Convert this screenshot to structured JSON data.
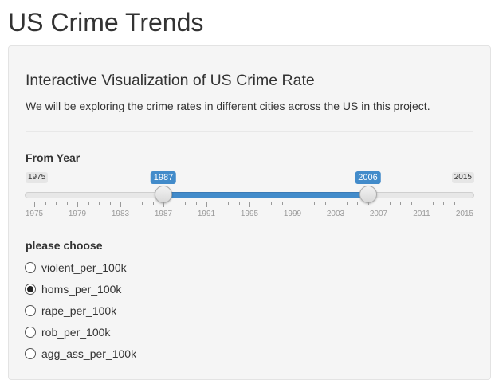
{
  "page": {
    "title": "US Crime Trends"
  },
  "panel": {
    "heading": "Interactive Visualization of US Crime Rate",
    "description": "We will be exploring the crime rates in different cities across the US in this project."
  },
  "year_slider": {
    "label": "From Year",
    "min": 1975,
    "max": 2015,
    "min_label": "1975",
    "max_label": "2015",
    "from": 1987,
    "to": 2006,
    "from_label": "1987",
    "to_label": "2006",
    "accent_color": "#428bca",
    "tick_labels": [
      "1975",
      "1979",
      "1983",
      "1987",
      "1991",
      "1995",
      "1999",
      "2003",
      "2007",
      "2011",
      "2015"
    ]
  },
  "crime_choice": {
    "label": "please choose",
    "options": [
      {
        "label": "violent_per_100k",
        "checked": false
      },
      {
        "label": "homs_per_100k",
        "checked": true
      },
      {
        "label": "rape_per_100k",
        "checked": false
      },
      {
        "label": "rob_per_100k",
        "checked": false
      },
      {
        "label": "agg_ass_per_100k",
        "checked": false
      }
    ]
  }
}
